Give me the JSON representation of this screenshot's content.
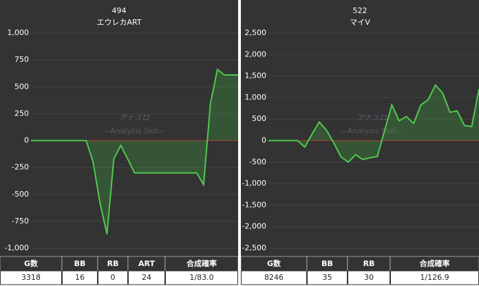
{
  "chart_data": [
    {
      "type": "line",
      "title": "494",
      "subtitle": "エウレカART",
      "color": "#4fc94f",
      "fill": "rgba(60,150,60,0.35)",
      "zero_line_color": "#c0302a",
      "grid": true,
      "watermark": "アナスロ",
      "watermark_sub": "—Analysis Slot—",
      "x": [
        0,
        1,
        2,
        3,
        4,
        5,
        6,
        7,
        8,
        9,
        10,
        11,
        12,
        13,
        14,
        15,
        16,
        17,
        18,
        19,
        20,
        21,
        22,
        23,
        24,
        25,
        26,
        27,
        28,
        29,
        30
      ],
      "values": [
        0,
        0,
        0,
        0,
        0,
        0,
        0,
        0,
        0,
        -200,
        -580,
        -870,
        -170,
        -45,
        -170,
        -300,
        -300,
        -300,
        -300,
        -300,
        -300,
        -300,
        -300,
        -300,
        -300,
        -410,
        350,
        660,
        610,
        610,
        610
      ],
      "xlim": [
        0,
        30
      ],
      "ylim": [
        -1000,
        1000
      ],
      "yticks": [
        {
          "value": -1000,
          "label": "-1,000"
        },
        -750,
        -500,
        -250,
        0,
        250,
        500,
        750,
        {
          "value": 1000,
          "label": "1,000"
        }
      ]
    },
    {
      "type": "line",
      "title": "522",
      "subtitle": "マイV",
      "color": "#4fc94f",
      "fill": "rgba(60,150,60,0.35)",
      "zero_line_color": "#c0302a",
      "grid": true,
      "watermark": "アナスロ",
      "watermark_sub": "—Analysis Slot—",
      "x": [
        0,
        1,
        2,
        3,
        4,
        5,
        6,
        7,
        8,
        9,
        10,
        11,
        12,
        13,
        14,
        15,
        16,
        17,
        18,
        19,
        20,
        21,
        22,
        23,
        24,
        25,
        26,
        27,
        28,
        29
      ],
      "values": [
        0,
        0,
        0,
        0,
        0,
        -150,
        150,
        430,
        240,
        -50,
        -380,
        -500,
        -330,
        -440,
        -400,
        -370,
        230,
        830,
        460,
        560,
        400,
        830,
        950,
        1290,
        1100,
        660,
        690,
        350,
        330,
        1200
      ],
      "xlim": [
        0,
        29
      ],
      "ylim": [
        -2500,
        2500
      ],
      "yticks": [
        {
          "value": -2500,
          "label": "-2,500"
        },
        {
          "value": -2000,
          "label": "-2,000"
        },
        {
          "value": -1500,
          "label": "-1,500"
        },
        {
          "value": -1000,
          "label": "-1,000"
        },
        -500,
        0,
        500,
        {
          "value": 1000,
          "label": "1,000"
        },
        {
          "value": 1500,
          "label": "1,500"
        },
        {
          "value": 2000,
          "label": "2,000"
        },
        {
          "value": 2500,
          "label": "2,500"
        }
      ]
    }
  ],
  "tables": [
    {
      "headers": [
        "G数",
        "BB",
        "RB",
        "ART",
        "合成確率"
      ],
      "row": [
        3318,
        16,
        0,
        24,
        "1/83.0"
      ]
    },
    {
      "headers": [
        "G数",
        "BB",
        "RB",
        "合成確率"
      ],
      "row": [
        8246,
        35,
        30,
        "1/126.9"
      ]
    }
  ]
}
